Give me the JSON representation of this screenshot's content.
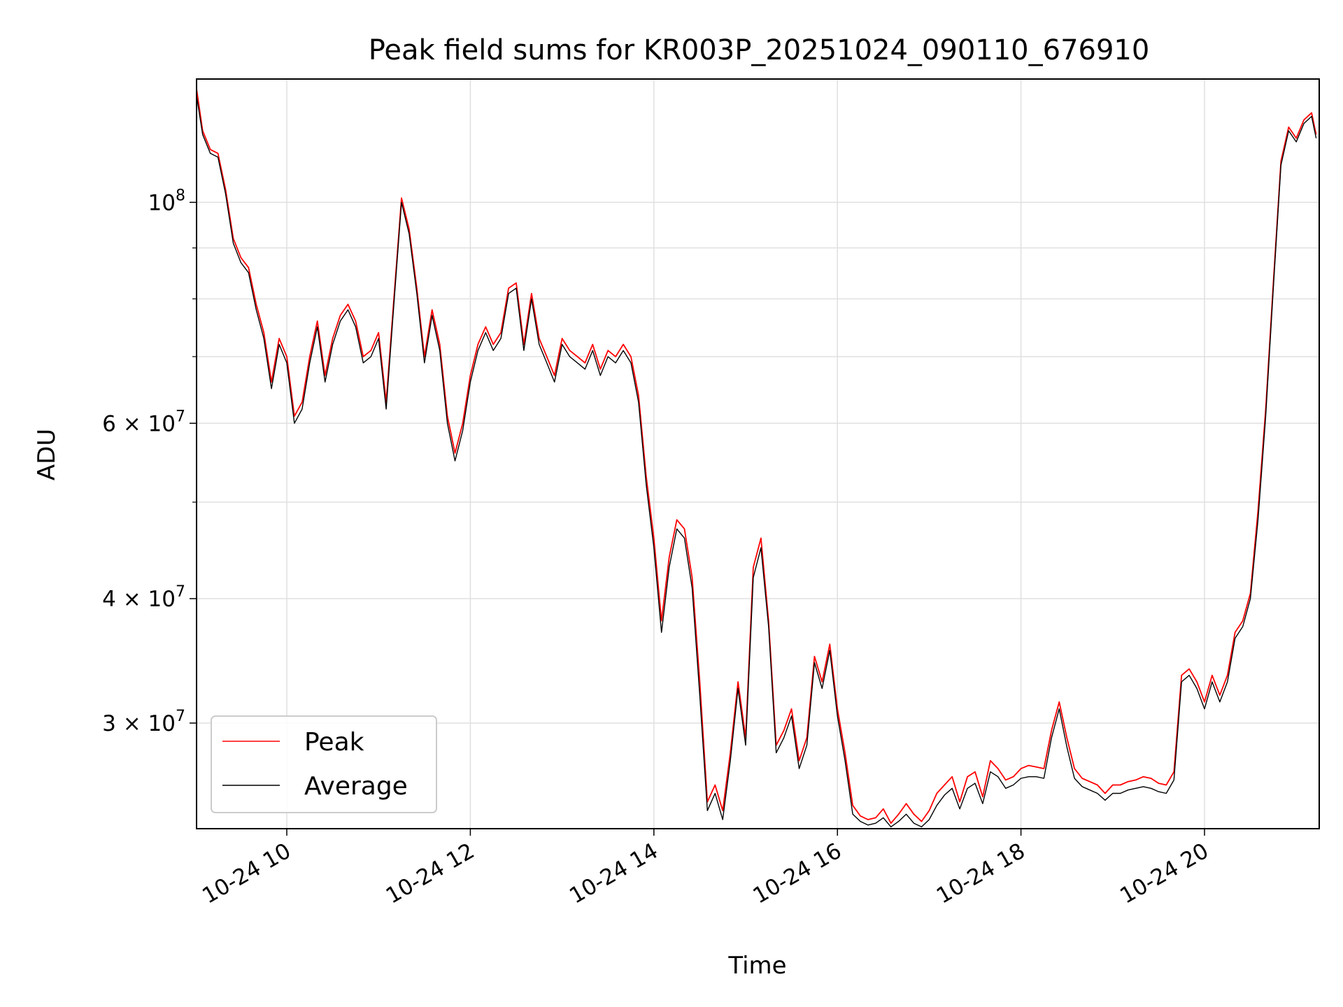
{
  "chart_data": {
    "type": "line",
    "title": "Peak field sums for KR003P_20251024_090110_676910",
    "xlabel": "Time",
    "ylabel": "ADU",
    "yscale": "log",
    "grid": true,
    "legend_placement": "lower-left",
    "xlim": [
      "2025-10-24 09:01",
      "2025-10-24 21:15"
    ],
    "ylim": [
      23500000,
      133000000
    ],
    "x_tick_labels": [
      "10-24 10",
      "10-24 12",
      "10-24 14",
      "10-24 16",
      "10-24 18",
      "10-24 20"
    ],
    "x_tick_values": [
      "2025-10-24 10:00",
      "2025-10-24 12:00",
      "2025-10-24 14:00",
      "2025-10-24 16:00",
      "2025-10-24 18:00",
      "2025-10-24 20:00"
    ],
    "y_tick_labels": [
      {
        "value": 100000000,
        "base": "10",
        "exp": "8"
      },
      {
        "value": 60000000,
        "base": "6 × 10",
        "exp": "7"
      },
      {
        "value": 40000000,
        "base": "4 × 10",
        "exp": "7"
      },
      {
        "value": 30000000,
        "base": "3 × 10",
        "exp": "7"
      }
    ],
    "y_minor_ticks": [
      90000000,
      80000000,
      70000000,
      50000000
    ],
    "x": [
      "09:01",
      "09:05",
      "09:10",
      "09:15",
      "09:20",
      "09:25",
      "09:30",
      "09:35",
      "09:40",
      "09:45",
      "09:50",
      "09:55",
      "10:00",
      "10:05",
      "10:10",
      "10:15",
      "10:20",
      "10:25",
      "10:30",
      "10:35",
      "10:40",
      "10:45",
      "10:50",
      "10:55",
      "11:00",
      "11:05",
      "11:10",
      "11:15",
      "11:20",
      "11:25",
      "11:30",
      "11:35",
      "11:40",
      "11:45",
      "11:50",
      "11:55",
      "12:00",
      "12:05",
      "12:10",
      "12:15",
      "12:20",
      "12:25",
      "12:30",
      "12:35",
      "12:40",
      "12:45",
      "12:50",
      "12:55",
      "13:00",
      "13:05",
      "13:10",
      "13:15",
      "13:20",
      "13:25",
      "13:30",
      "13:35",
      "13:40",
      "13:45",
      "13:50",
      "13:55",
      "14:00",
      "14:05",
      "14:10",
      "14:15",
      "14:20",
      "14:25",
      "14:30",
      "14:35",
      "14:40",
      "14:45",
      "14:50",
      "14:55",
      "15:00",
      "15:05",
      "15:10",
      "15:15",
      "15:20",
      "15:25",
      "15:30",
      "15:35",
      "15:40",
      "15:45",
      "15:50",
      "15:55",
      "16:00",
      "16:05",
      "16:10",
      "16:15",
      "16:20",
      "16:25",
      "16:30",
      "16:35",
      "16:40",
      "16:45",
      "16:50",
      "16:55",
      "17:00",
      "17:05",
      "17:10",
      "17:15",
      "17:20",
      "17:25",
      "17:30",
      "17:35",
      "17:40",
      "17:45",
      "17:50",
      "17:55",
      "18:00",
      "18:05",
      "18:10",
      "18:15",
      "18:20",
      "18:25",
      "18:30",
      "18:35",
      "18:40",
      "18:45",
      "18:50",
      "18:55",
      "19:00",
      "19:05",
      "19:10",
      "19:15",
      "19:20",
      "19:25",
      "19:30",
      "19:35",
      "19:40",
      "19:45",
      "19:50",
      "19:55",
      "20:00",
      "20:05",
      "20:10",
      "20:15",
      "20:20",
      "20:25",
      "20:30",
      "20:35",
      "20:40",
      "20:45",
      "20:50",
      "20:55",
      "21:00",
      "21:05",
      "21:10",
      "21:13"
    ],
    "series": [
      {
        "name": "Peak",
        "color": "#ff0000",
        "values": [
          130000000,
          118000000,
          113000000,
          112000000,
          103000000,
          92000000,
          88000000,
          86000000,
          79000000,
          74000000,
          66000000,
          73000000,
          70000000,
          61000000,
          63000000,
          70000000,
          76000000,
          67000000,
          73000000,
          77000000,
          79000000,
          76000000,
          70000000,
          71000000,
          74000000,
          63000000,
          80000000,
          101000000,
          94000000,
          82000000,
          70000000,
          78000000,
          72000000,
          61000000,
          56000000,
          60000000,
          67000000,
          72000000,
          75000000,
          72000000,
          74000000,
          82000000,
          83000000,
          72000000,
          81000000,
          73000000,
          70000000,
          67000000,
          73000000,
          71000000,
          70000000,
          69000000,
          72000000,
          68000000,
          71000000,
          70000000,
          72000000,
          70000000,
          64000000,
          53000000,
          46000000,
          38000000,
          44000000,
          48000000,
          47000000,
          42000000,
          33000000,
          25000000,
          26000000,
          24500000,
          28000000,
          33000000,
          29000000,
          43000000,
          46000000,
          38000000,
          28500000,
          29500000,
          31000000,
          27500000,
          29000000,
          35000000,
          33000000,
          36000000,
          31000000,
          28000000,
          24800000,
          24200000,
          24000000,
          24100000,
          24600000,
          23800000,
          24300000,
          24900000,
          24300000,
          23900000,
          24500000,
          25500000,
          26000000,
          26500000,
          25000000,
          26500000,
          26800000,
          25300000,
          27500000,
          27000000,
          26300000,
          26500000,
          27000000,
          27200000,
          27100000,
          27000000,
          29500000,
          31500000,
          29000000,
          27000000,
          26400000,
          26200000,
          26000000,
          25500000,
          26000000,
          26000000,
          26200000,
          26300000,
          26500000,
          26400000,
          26100000,
          26000000,
          26800000,
          33500000,
          34000000,
          33000000,
          31500000,
          33500000,
          32000000,
          33500000,
          37000000,
          38000000,
          40500000,
          49000000,
          62000000,
          83000000,
          110000000,
          119000000,
          116000000,
          121000000,
          123000000,
          117000000
        ]
      },
      {
        "name": "Average",
        "color": "#000000",
        "values": [
          128000000,
          117000000,
          112000000,
          111000000,
          102000000,
          91000000,
          87000000,
          85000000,
          78000000,
          73000000,
          65000000,
          72000000,
          69000000,
          60000000,
          62000000,
          69000000,
          75000000,
          66000000,
          72000000,
          76000000,
          78000000,
          75000000,
          69000000,
          70000000,
          73000000,
          62000000,
          79000000,
          100000000,
          93000000,
          81000000,
          69000000,
          77000000,
          71000000,
          60000000,
          55000000,
          59000000,
          66000000,
          71000000,
          74000000,
          71000000,
          73000000,
          81000000,
          82000000,
          71000000,
          80000000,
          72000000,
          69000000,
          66000000,
          72000000,
          70000000,
          69000000,
          68000000,
          71000000,
          67000000,
          70000000,
          69000000,
          71000000,
          69000000,
          63000000,
          52000000,
          45000000,
          37000000,
          43000000,
          47000000,
          46000000,
          41000000,
          32000000,
          24500000,
          25500000,
          24000000,
          27500000,
          32500000,
          28500000,
          42000000,
          45000000,
          37500000,
          28000000,
          29000000,
          30500000,
          27000000,
          28500000,
          34500000,
          32500000,
          35500000,
          30500000,
          27500000,
          24300000,
          23900000,
          23700000,
          23800000,
          24100000,
          23600000,
          23900000,
          24300000,
          23800000,
          23600000,
          24000000,
          24800000,
          25400000,
          25800000,
          24600000,
          25800000,
          26100000,
          24900000,
          26800000,
          26500000,
          25800000,
          26000000,
          26400000,
          26500000,
          26500000,
          26400000,
          29000000,
          31000000,
          28400000,
          26400000,
          25900000,
          25700000,
          25500000,
          25100000,
          25500000,
          25500000,
          25700000,
          25800000,
          25900000,
          25800000,
          25600000,
          25500000,
          26300000,
          33000000,
          33500000,
          32500000,
          31000000,
          33000000,
          31500000,
          33000000,
          36500000,
          37500000,
          40000000,
          48000000,
          61000000,
          82000000,
          109000000,
          118000000,
          115000000,
          120000000,
          122000000,
          116000000
        ]
      }
    ]
  }
}
